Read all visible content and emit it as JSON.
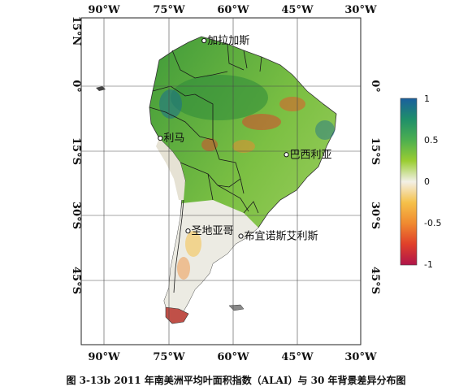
{
  "caption": "图 3-13b 2011 年南美洲平均叶面积指数（ALAI）与 30 年背景差异分布图",
  "axes": {
    "lon_ticks": [
      "90°W",
      "75°W",
      "60°W",
      "45°W",
      "30°W"
    ],
    "lat_ticks": [
      "15°N",
      "0°",
      "15°S",
      "30°S",
      "45°S"
    ]
  },
  "cities": [
    {
      "name": "加拉加斯",
      "lon": -66.9,
      "lat": 10.5
    },
    {
      "name": "利马",
      "lon": -77.0,
      "lat": -12.0
    },
    {
      "name": "巴西利亚",
      "lon": -47.9,
      "lat": -15.8
    },
    {
      "name": "圣地亚哥",
      "lon": -70.6,
      "lat": -33.4
    },
    {
      "name": "布宜诺斯艾利斯",
      "lon": -58.4,
      "lat": -34.6
    }
  ],
  "colorbar": {
    "min": -1,
    "max": 1,
    "tick_labels": [
      "1",
      "0.5",
      "0",
      "-0.5",
      "-1"
    ],
    "stops": [
      {
        "value": 1,
        "color": "#1a5f9e"
      },
      {
        "value": 0.75,
        "color": "#1f8f6a"
      },
      {
        "value": 0.5,
        "color": "#4caf50"
      },
      {
        "value": 0.25,
        "color": "#9acd32"
      },
      {
        "value": 0,
        "color": "#f3f0e6"
      },
      {
        "value": -0.25,
        "color": "#f5c14a"
      },
      {
        "value": -0.5,
        "color": "#f08a30"
      },
      {
        "value": -0.75,
        "color": "#e0402a"
      },
      {
        "value": -1,
        "color": "#b0154a"
      }
    ]
  }
}
